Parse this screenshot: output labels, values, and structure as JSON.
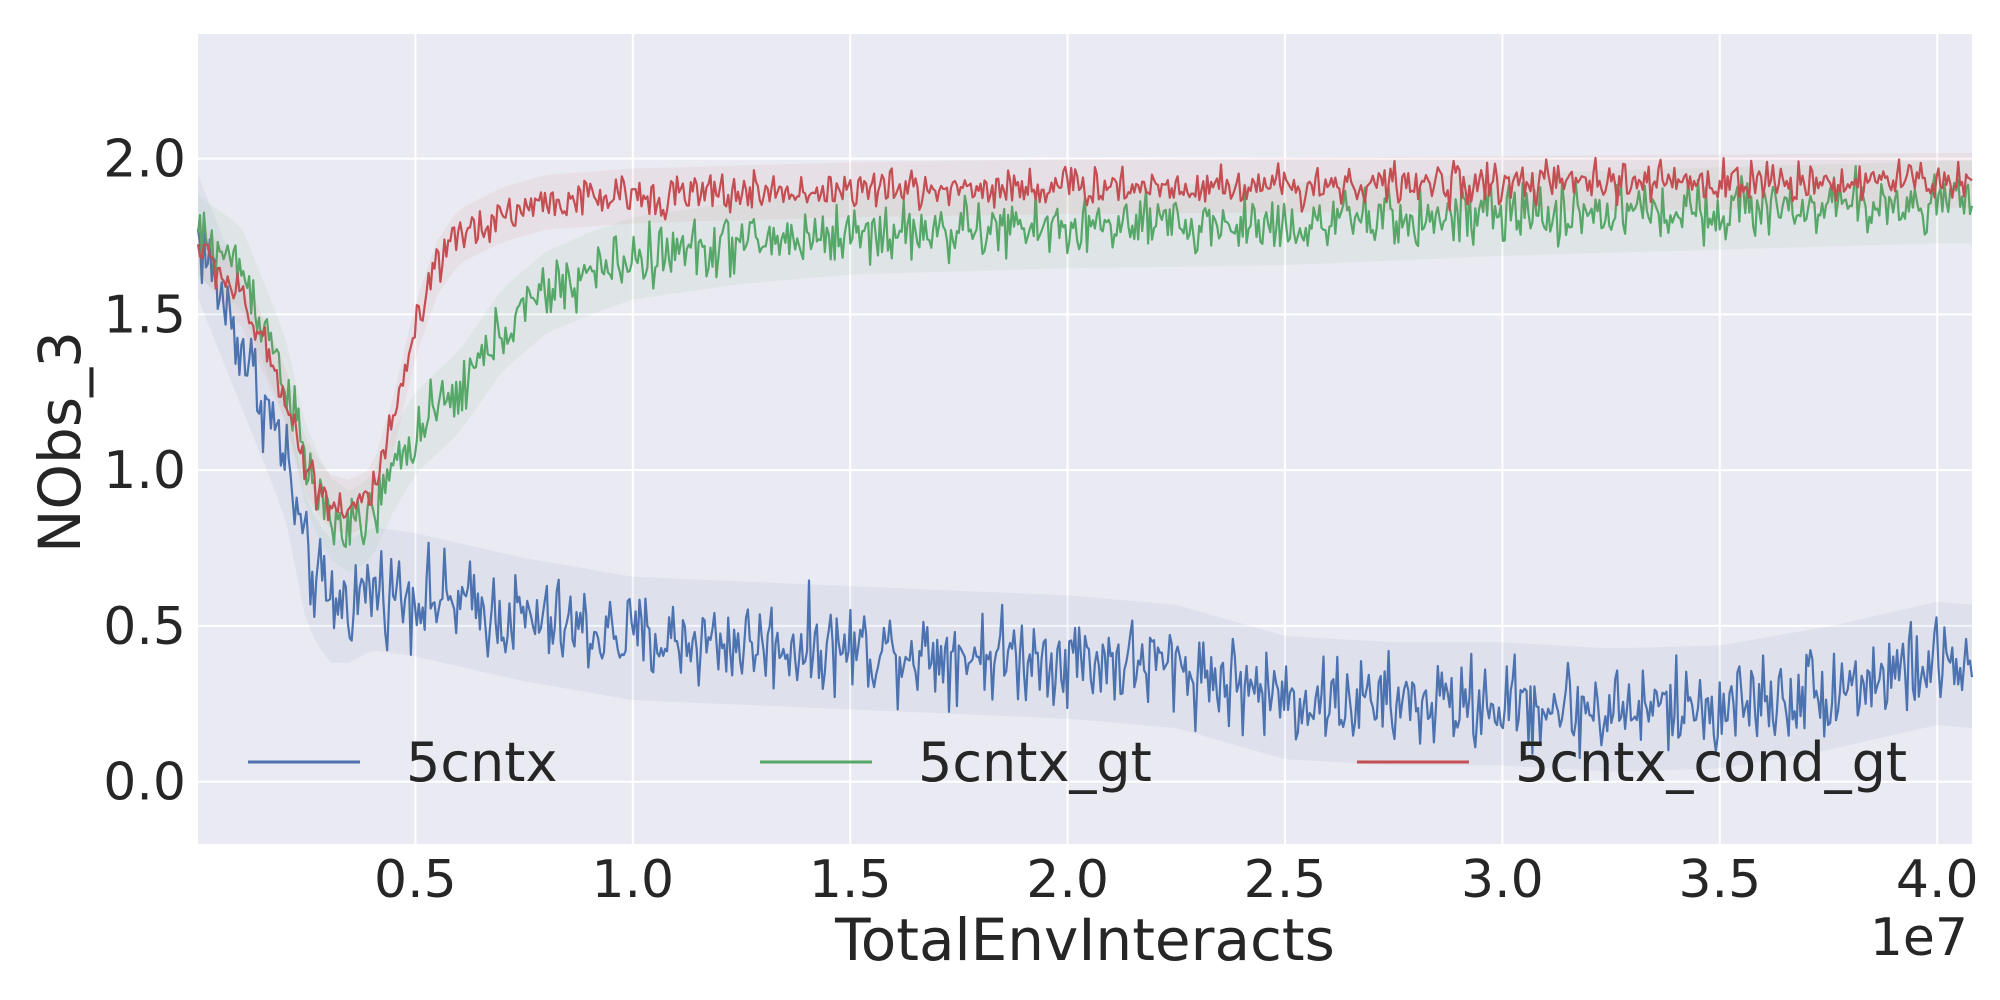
{
  "chart_data": {
    "type": "line",
    "xlabel": "TotalEnvInteracts",
    "ylabel": "NObs_3",
    "x_offset_label": "1e7",
    "xlim": [
      0.0,
      4.08
    ],
    "ylim": [
      -0.2,
      2.4
    ],
    "x_ticks": [
      0.5,
      1.0,
      1.5,
      2.0,
      2.5,
      3.0,
      3.5,
      4.0
    ],
    "x_tick_labels": [
      "0.5",
      "1.0",
      "1.5",
      "2.0",
      "2.5",
      "3.0",
      "3.5",
      "4.0"
    ],
    "y_ticks": [
      0.0,
      0.5,
      1.0,
      1.5,
      2.0
    ],
    "y_tick_labels": [
      "0.0",
      "0.5",
      "1.0",
      "1.5",
      "2.0"
    ],
    "grid": true,
    "legend_position": "bottom",
    "background": "#eaeaf2",
    "series": [
      {
        "name": "5cntx",
        "color": "#4c72b0",
        "x": [
          0.0,
          0.1,
          0.2,
          0.25,
          0.3,
          0.35,
          0.4,
          0.5,
          0.75,
          1.0,
          1.5,
          2.0,
          2.25,
          2.5,
          2.75,
          3.0,
          3.25,
          3.5,
          3.75,
          4.0,
          4.08
        ],
        "y": [
          1.75,
          1.4,
          1.05,
          0.7,
          0.58,
          0.58,
          0.62,
          0.6,
          0.52,
          0.46,
          0.43,
          0.4,
          0.37,
          0.27,
          0.25,
          0.25,
          0.23,
          0.24,
          0.3,
          0.38,
          0.37
        ],
        "noise": 0.09
      },
      {
        "name": "5cntx_gt",
        "color": "#55a868",
        "x": [
          0.0,
          0.1,
          0.2,
          0.25,
          0.3,
          0.35,
          0.4,
          0.45,
          0.5,
          0.6,
          0.7,
          0.8,
          0.9,
          1.0,
          1.25,
          1.5,
          2.0,
          2.5,
          3.0,
          3.5,
          4.0,
          4.08
        ],
        "y": [
          1.75,
          1.65,
          1.3,
          1.0,
          0.85,
          0.8,
          0.85,
          1.0,
          1.12,
          1.25,
          1.45,
          1.57,
          1.63,
          1.68,
          1.73,
          1.76,
          1.78,
          1.79,
          1.82,
          1.84,
          1.86,
          1.86
        ],
        "noise": 0.06
      },
      {
        "name": "5cntx_cond_gt",
        "color": "#c44e52",
        "x": [
          0.0,
          0.1,
          0.2,
          0.25,
          0.3,
          0.35,
          0.4,
          0.45,
          0.5,
          0.55,
          0.6,
          0.7,
          0.8,
          1.0,
          1.5,
          2.0,
          3.0,
          4.0,
          4.08
        ],
        "y": [
          1.72,
          1.55,
          1.25,
          1.0,
          0.9,
          0.88,
          0.92,
          1.15,
          1.45,
          1.65,
          1.75,
          1.82,
          1.86,
          1.88,
          1.9,
          1.91,
          1.92,
          1.93,
          1.93
        ],
        "noise": 0.04
      }
    ]
  }
}
